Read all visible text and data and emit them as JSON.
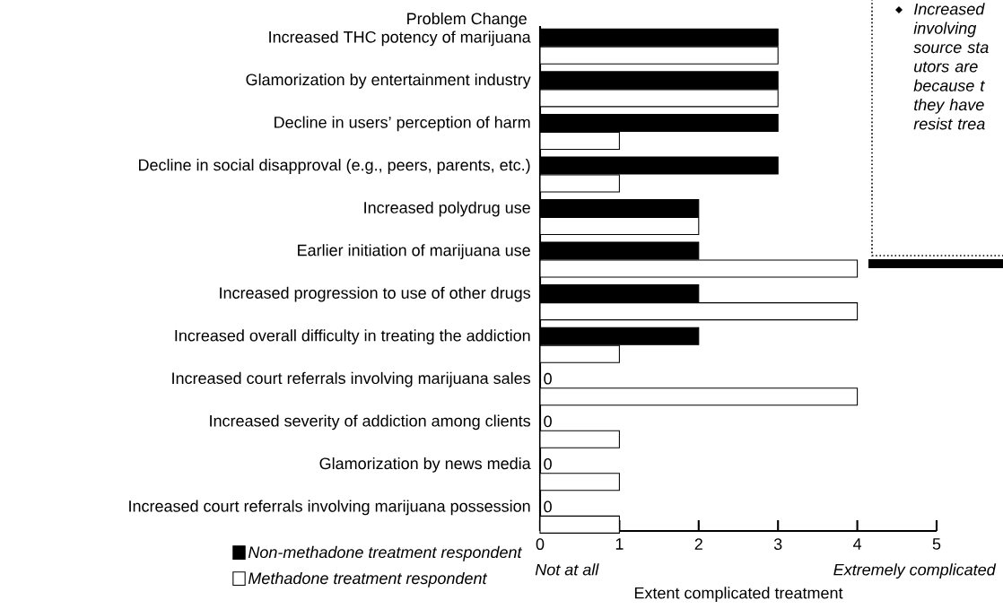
{
  "chart_data": {
    "type": "bar",
    "orientation": "horizontal",
    "ylabel": "Problem Change",
    "xlabel": "Extent complicated treatment",
    "categories": [
      "Increased THC potency of marijuana",
      "Glamorization by entertainment industry",
      "Decline in users’ perception of harm",
      "Decline in social disapproval (e.g., peers, parents, etc.)",
      "Increased polydrug use",
      "Earlier initiation of marijuana use",
      "Increased progression to use of other drugs",
      "Increased overall difficulty in treating the addiction",
      "Increased court referrals involving marijuana sales",
      "Increased severity of addiction among clients",
      "Glamorization by news media",
      "Increased court referrals involving marijuana possession"
    ],
    "series": [
      {
        "name": "Non-methadone treatment respondent",
        "color": "#000000",
        "values": [
          3,
          3,
          3,
          3,
          2,
          2,
          2,
          2,
          0,
          0,
          0,
          0
        ],
        "value_labels": [
          null,
          null,
          null,
          null,
          null,
          null,
          null,
          null,
          "0",
          "0",
          "0",
          "0"
        ]
      },
      {
        "name": "Methadone treatment respondent",
        "color": "#ffffff",
        "values": [
          3,
          3,
          1,
          1,
          2,
          4,
          4,
          1,
          4,
          1,
          1,
          1
        ]
      }
    ],
    "xlim": [
      0,
      5
    ],
    "xticks": [
      0,
      1,
      2,
      3,
      4,
      5
    ],
    "annotations": [
      "Not at all",
      "Extremely complicated",
      "Increased involving source sta utors are because t they have resist trea"
    ],
    "legend": "bottom left",
    "grid": false
  }
}
